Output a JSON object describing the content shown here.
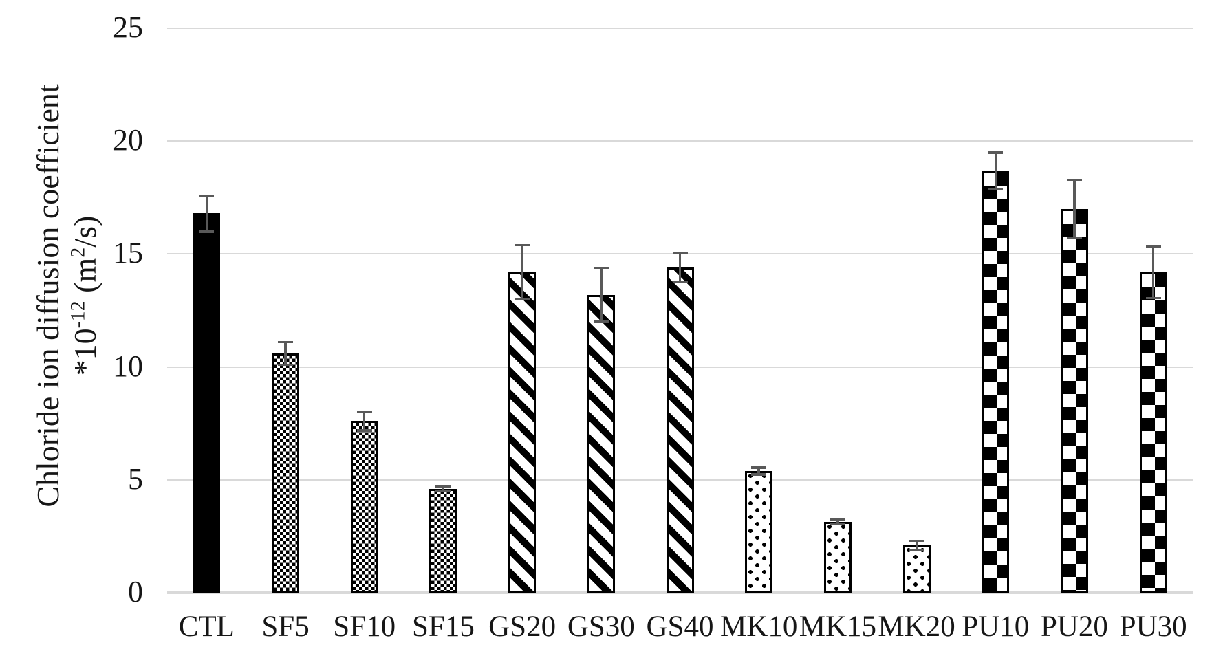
{
  "chart_data": {
    "type": "bar",
    "title": "",
    "categories": [
      "CTL",
      "SF5",
      "SF10",
      "SF15",
      "GS20",
      "GS30",
      "GS40",
      "MK10",
      "MK15",
      "MK20",
      "PU10",
      "PU20",
      "PU30"
    ],
    "series": [
      {
        "name": "Chloride ion diffusion coefficient *10-12 (m2/s)",
        "values": [
          16.8,
          10.6,
          7.6,
          4.6,
          14.2,
          13.2,
          14.4,
          5.4,
          3.15,
          2.1,
          18.7,
          17.0,
          14.2
        ],
        "errors": [
          0.8,
          0.5,
          0.4,
          0.1,
          1.2,
          1.2,
          0.65,
          0.15,
          0.1,
          0.2,
          0.8,
          1.3,
          1.15
        ]
      }
    ],
    "bar_patterns": [
      "solid",
      "fine-check",
      "fine-check",
      "fine-check",
      "diag-stripe",
      "diag-stripe",
      "diag-stripe",
      "dot",
      "dot",
      "dot",
      "big-check",
      "big-check",
      "big-check"
    ],
    "xlabel": "",
    "ylabel": "Chloride ion diffusion coefficient *10-12 (m2/s)",
    "ylabel_line1": "Chloride ion diffusion coefficient",
    "ylabel_line2_parts": {
      "p1": "*10",
      "sup1": "-12",
      "p2": " (m",
      "sup2": "2",
      "p3": "/s)"
    },
    "y_ticks": [
      0,
      5,
      10,
      15,
      20,
      25
    ],
    "ylim": [
      0,
      25
    ],
    "grid": true,
    "legend_position": "none"
  },
  "colors": {
    "bar_fill": "#000000",
    "bar_background": "#ffffff",
    "error_bar": "#595959",
    "gridline": "#d9d9d9",
    "text": "#161616"
  }
}
